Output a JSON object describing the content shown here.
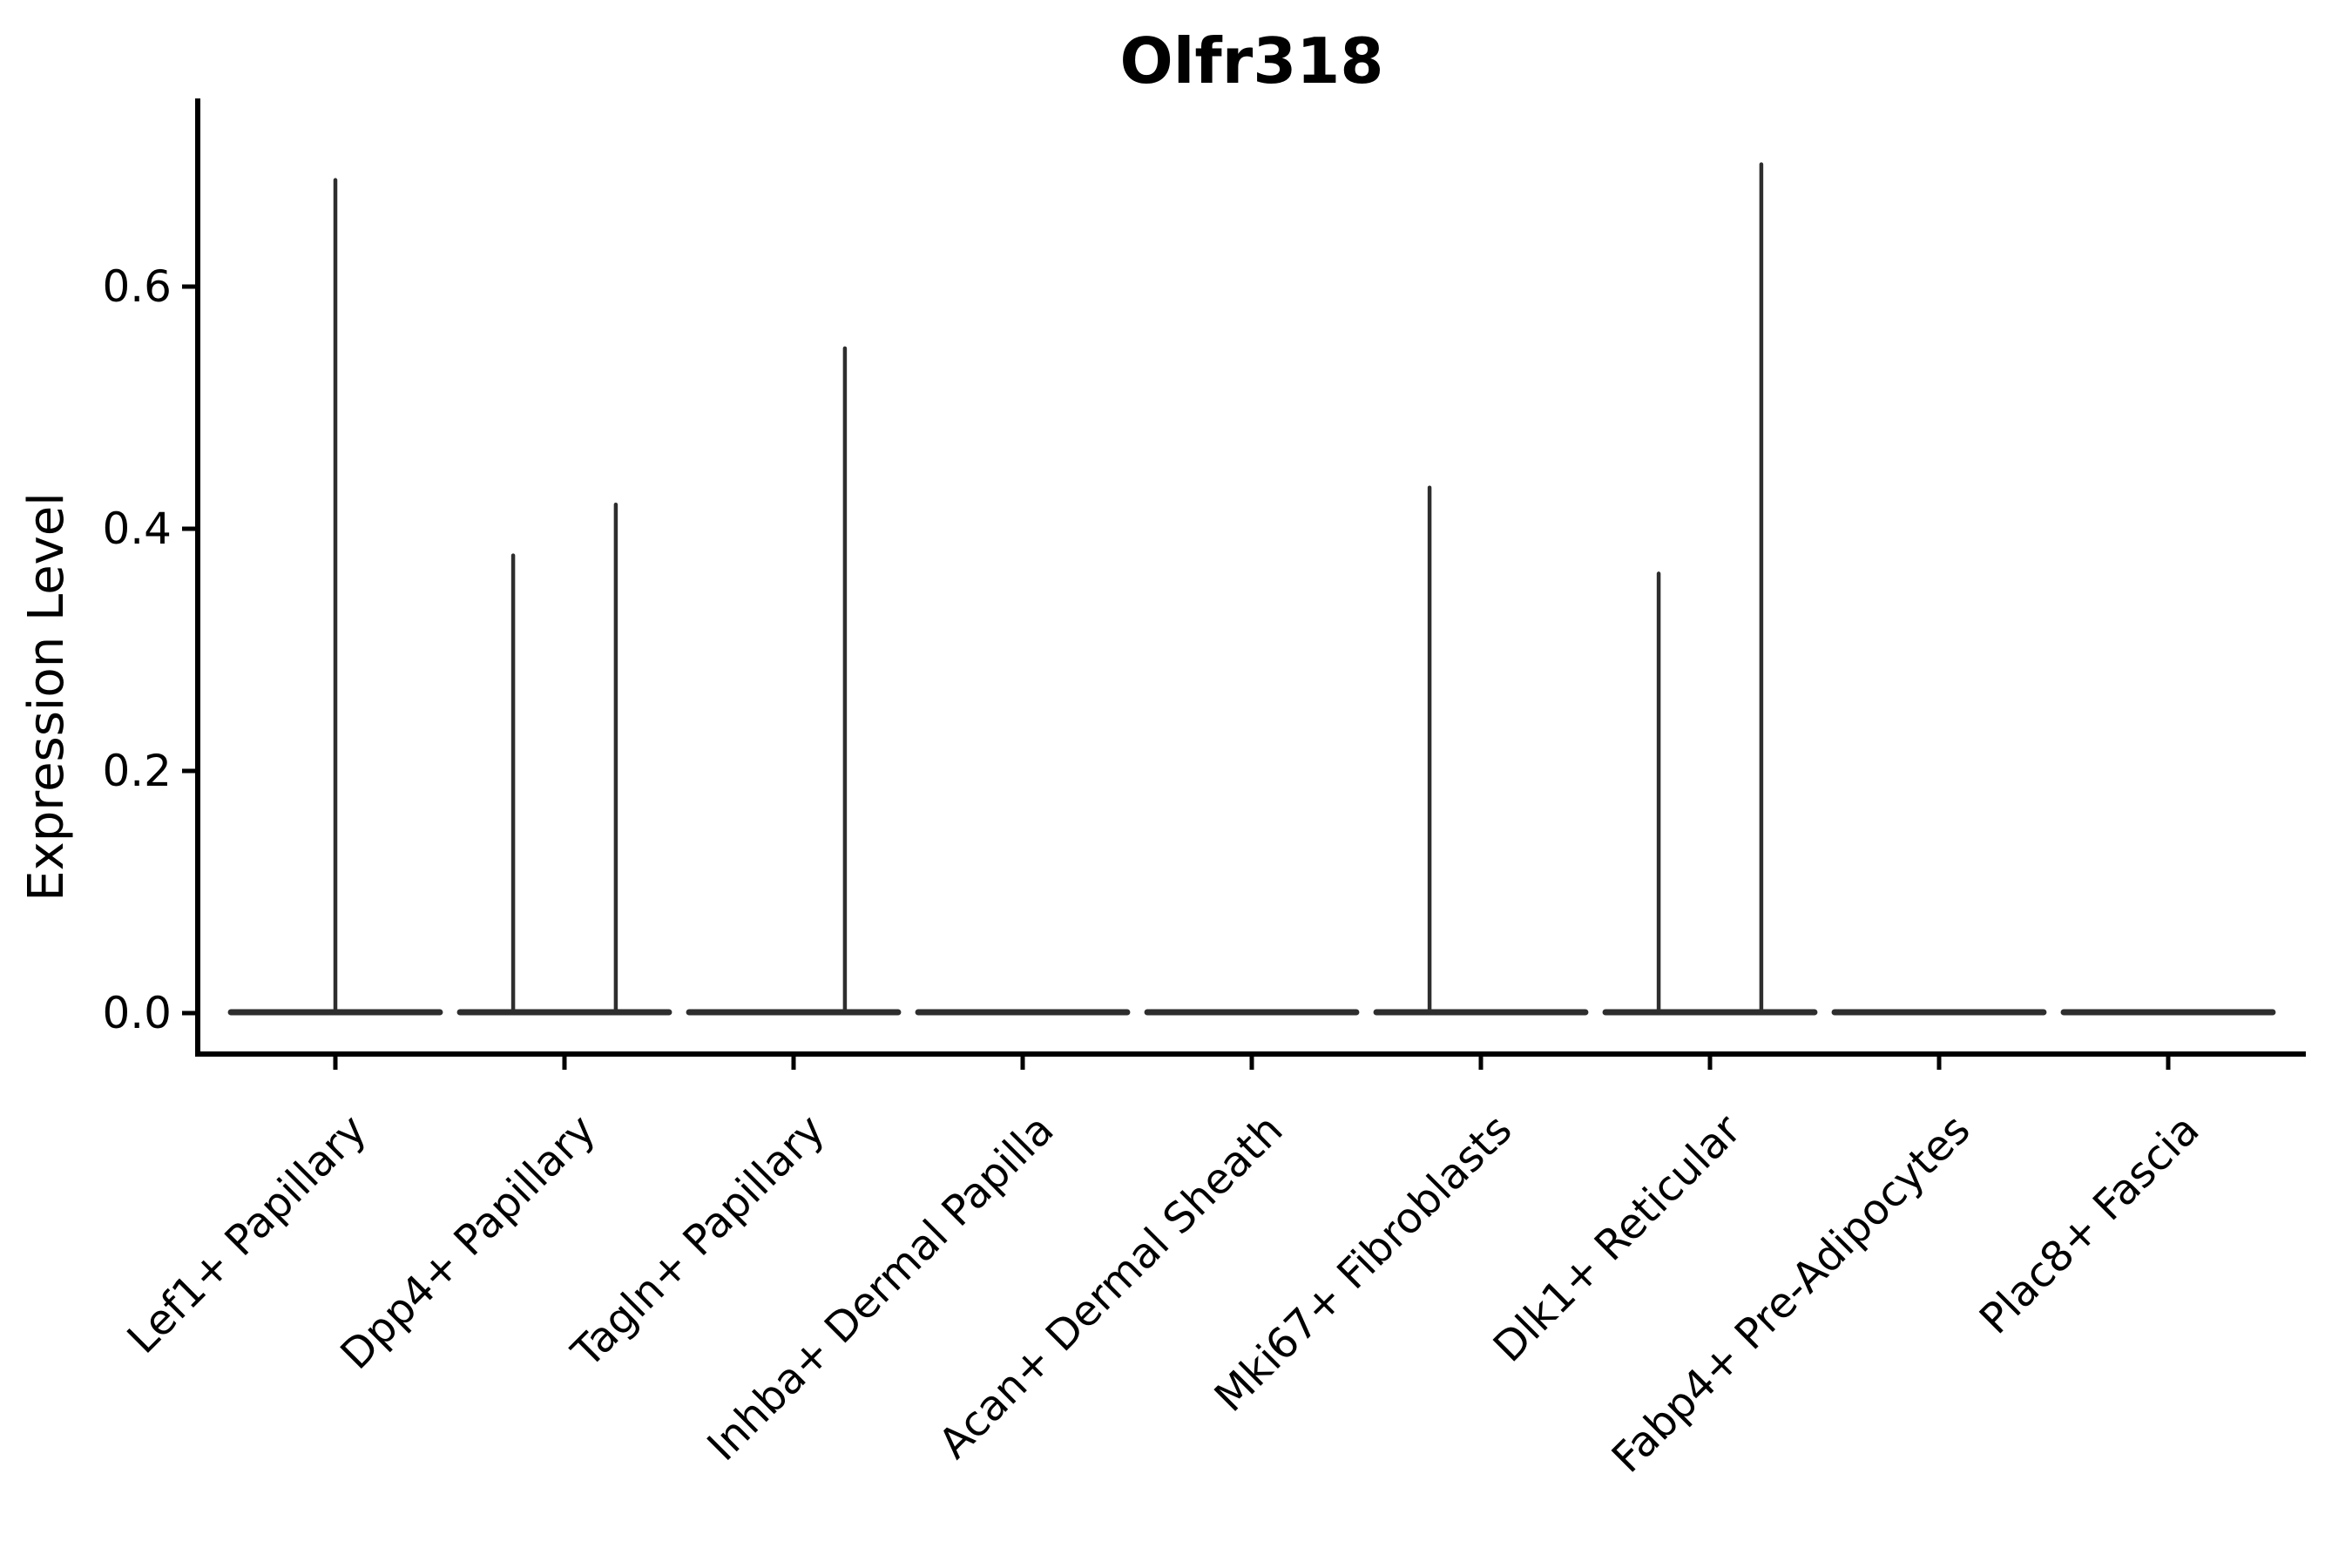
{
  "title": "Olfr318",
  "chart_data": {
    "type": "violin",
    "title": "Olfr318",
    "xlabel": "",
    "ylabel": "Expression Level",
    "categories": [
      "Lef1+ Papillary",
      "Dpp4+ Papillary",
      "Tagln+ Papillary",
      "Inhba+ Dermal Papilla",
      "Acan+ Dermal Sheath",
      "Mki67+ Fibroblasts",
      "Dlk1+ Reticular",
      "Fabp4+ Pre-Adipocytes",
      "Plac8+ Fascia"
    ],
    "yticks": [
      0.0,
      0.2,
      0.4,
      0.6
    ],
    "ytick_labels": [
      "0.0",
      "0.2",
      "0.4",
      "0.6"
    ],
    "ylim": [
      -0.034,
      0.755
    ],
    "grid": false,
    "legend": "none",
    "xticklabel_rotation": 45,
    "violin_color": "#2e2e2e",
    "axis_color": "#000000",
    "base_halfwidth_frac": 0.456,
    "baseline_value": 0.0,
    "violins": [
      {
        "category": "Lef1+ Papillary",
        "spikes": [
          {
            "offset_frac": 0.0,
            "value": 0.688
          }
        ]
      },
      {
        "category": "Dpp4+ Papillary",
        "spikes": [
          {
            "offset_frac": -0.224,
            "value": 0.378
          },
          {
            "offset_frac": 0.224,
            "value": 0.42
          }
        ]
      },
      {
        "category": "Tagln+ Papillary",
        "spikes": [
          {
            "offset_frac": 0.224,
            "value": 0.549
          }
        ]
      },
      {
        "category": "Inhba+ Dermal Papilla",
        "spikes": []
      },
      {
        "category": "Acan+ Dermal Sheath",
        "spikes": []
      },
      {
        "category": "Mki67+ Fibroblasts",
        "spikes": [
          {
            "offset_frac": -0.224,
            "value": 0.434
          }
        ]
      },
      {
        "category": "Dlk1+ Reticular",
        "spikes": [
          {
            "offset_frac": -0.224,
            "value": 0.363
          },
          {
            "offset_frac": 0.224,
            "value": 0.701
          }
        ]
      },
      {
        "category": "Fabp4+ Pre-Adipocytes",
        "spikes": []
      },
      {
        "category": "Plac8+ Fascia",
        "spikes": []
      }
    ]
  }
}
